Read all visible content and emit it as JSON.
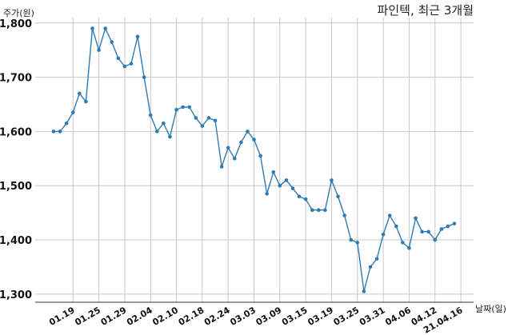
{
  "chart_data": {
    "type": "line",
    "title": "파인텍, 최근 3개월",
    "ylabel": "주가(원)",
    "xlabel": "날짜(일)",
    "ylim": [
      1285,
      1810
    ],
    "y_ticks": [
      1300,
      1400,
      1500,
      1600,
      1700,
      1800
    ],
    "y_tick_labels": [
      "1,300",
      "1,400",
      "1,500",
      "1,600",
      "1,700",
      "1,800"
    ],
    "x_tick_labels": [
      "01.19",
      "01.25",
      "01.29",
      "02.04",
      "02.10",
      "02.18",
      "02.24",
      "03.03",
      "03.09",
      "03.15",
      "03.19",
      "03.25",
      "03.31",
      "04.06",
      "04.12",
      "21.04.16"
    ],
    "x_tick_index": [
      3,
      7,
      11,
      15,
      19,
      23,
      27,
      31,
      35,
      39,
      43,
      47,
      51,
      55,
      59,
      63
    ],
    "grid": true,
    "line_color": "#2e7bb4",
    "series": [
      {
        "values": [
          1600,
          1600,
          1615,
          1635,
          1670,
          1655,
          1790,
          1750,
          1790,
          1765,
          1735,
          1720,
          1725,
          1775,
          1700,
          1630,
          1600,
          1615,
          1590,
          1640,
          1645,
          1645,
          1625,
          1610,
          1625,
          1620,
          1535,
          1570,
          1550,
          1580,
          1600,
          1585,
          1555,
          1485,
          1525,
          1500,
          1510,
          1495,
          1480,
          1475,
          1455,
          1455,
          1455,
          1510,
          1480,
          1445,
          1400,
          1395,
          1305,
          1350,
          1365,
          1410,
          1445,
          1425,
          1395,
          1385,
          1440,
          1415,
          1415,
          1400,
          1420,
          1425,
          1430
        ]
      }
    ]
  }
}
